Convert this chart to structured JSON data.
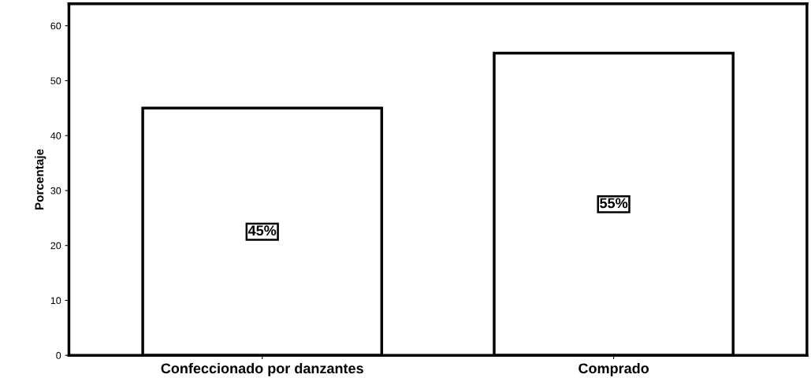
{
  "chart_data": {
    "type": "bar",
    "ylabel": "Porcentaje",
    "categories": [
      "Confeccionado por danzantes",
      "Comprado"
    ],
    "values": [
      45,
      55
    ],
    "value_labels": [
      "45%",
      "55%"
    ],
    "color": "#ffffff",
    "ylim": [
      0,
      64
    ],
    "yticks": [
      0,
      10,
      20,
      30,
      40,
      50,
      60
    ],
    "grid": false,
    "legend": false
  }
}
